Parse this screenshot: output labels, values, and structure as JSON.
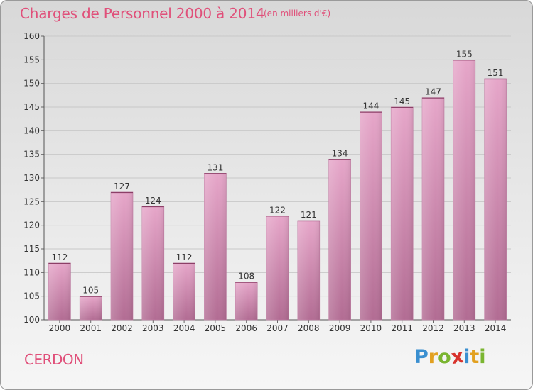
{
  "header": {
    "title": "Charges de Personnel 2000 à 2014",
    "subtitle": "(en milliers d'€)"
  },
  "footer": {
    "commune": "CERDON",
    "brand_letters": [
      "P",
      "r",
      "o",
      "x",
      "i",
      "t",
      "i"
    ],
    "brand_colors": [
      "#3a8fd0",
      "#e2a020",
      "#7ab530",
      "#d8332c",
      "#3a8fd0",
      "#e2a020",
      "#7ab530"
    ]
  },
  "chart_data": {
    "type": "bar",
    "categories": [
      "2000",
      "2001",
      "2002",
      "2003",
      "2004",
      "2005",
      "2006",
      "2007",
      "2008",
      "2009",
      "2010",
      "2011",
      "2012",
      "2013",
      "2014"
    ],
    "values": [
      112,
      105,
      127,
      124,
      112,
      131,
      108,
      122,
      121,
      134,
      144,
      145,
      147,
      155,
      151
    ],
    "ylim": [
      100,
      160
    ],
    "yticks": [
      100,
      105,
      110,
      115,
      120,
      125,
      130,
      135,
      140,
      145,
      150,
      155,
      160
    ],
    "grid": true,
    "bar_color": "#d98fb5"
  }
}
